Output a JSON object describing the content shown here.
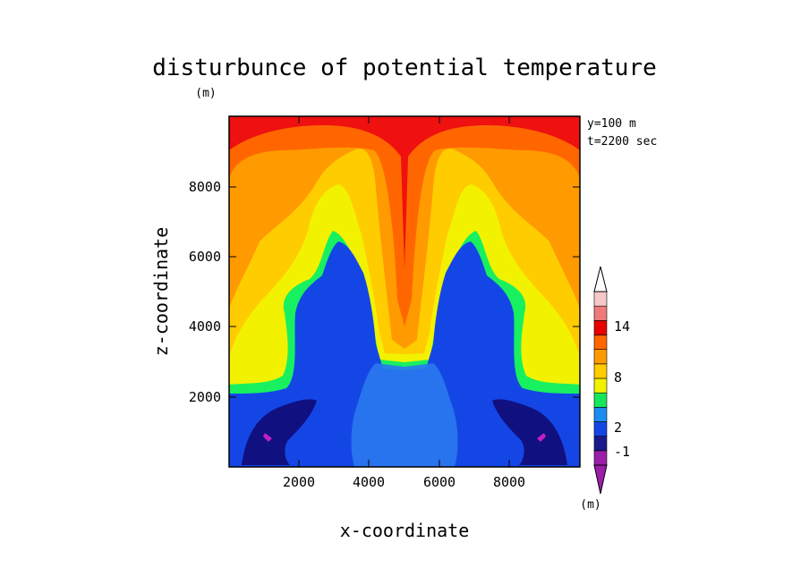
{
  "chart_data": {
    "type": "heatmap",
    "title": "disturbunce of potential temperature",
    "units_label": "(m)",
    "xlabel": "x-coordinate",
    "ylabel": "z-coordinate",
    "annotation_lines": [
      "y=100 m",
      "t=2200 sec"
    ],
    "xlim": [
      0,
      10000
    ],
    "ylim": [
      0,
      10000
    ],
    "x_ticks": [
      2000,
      4000,
      6000,
      8000
    ],
    "y_ticks": [
      2000,
      4000,
      6000,
      8000
    ],
    "x_tick_labels": [
      "2000",
      "4000",
      "6000",
      "8000"
    ],
    "y_tick_labels": [
      "2000",
      "4000",
      "6000",
      "8000"
    ],
    "colorbar": {
      "units_label": "(m)",
      "tick_labels": [
        "14",
        "8",
        "2",
        "-1"
      ],
      "levels_colors": [
        "#9b1fa8",
        "#1a1a8c",
        "#1446e6",
        "#1c8cf0",
        "#18e65a",
        "#f2f200",
        "#ffcc00",
        "#ff9a00",
        "#ff6600",
        "#e80000",
        "#f07a7a",
        "#f7c8c8"
      ]
    },
    "colors": {
      "purple": "#c020c0",
      "navy": "#101080",
      "blue": "#1446e6",
      "lightblue": "#2a78ee",
      "green": "#18f060",
      "yellow": "#f2f200",
      "gold": "#ffcc00",
      "orange": "#ff9a00",
      "darkorange": "#ff6600",
      "red": "#ef1010"
    }
  }
}
